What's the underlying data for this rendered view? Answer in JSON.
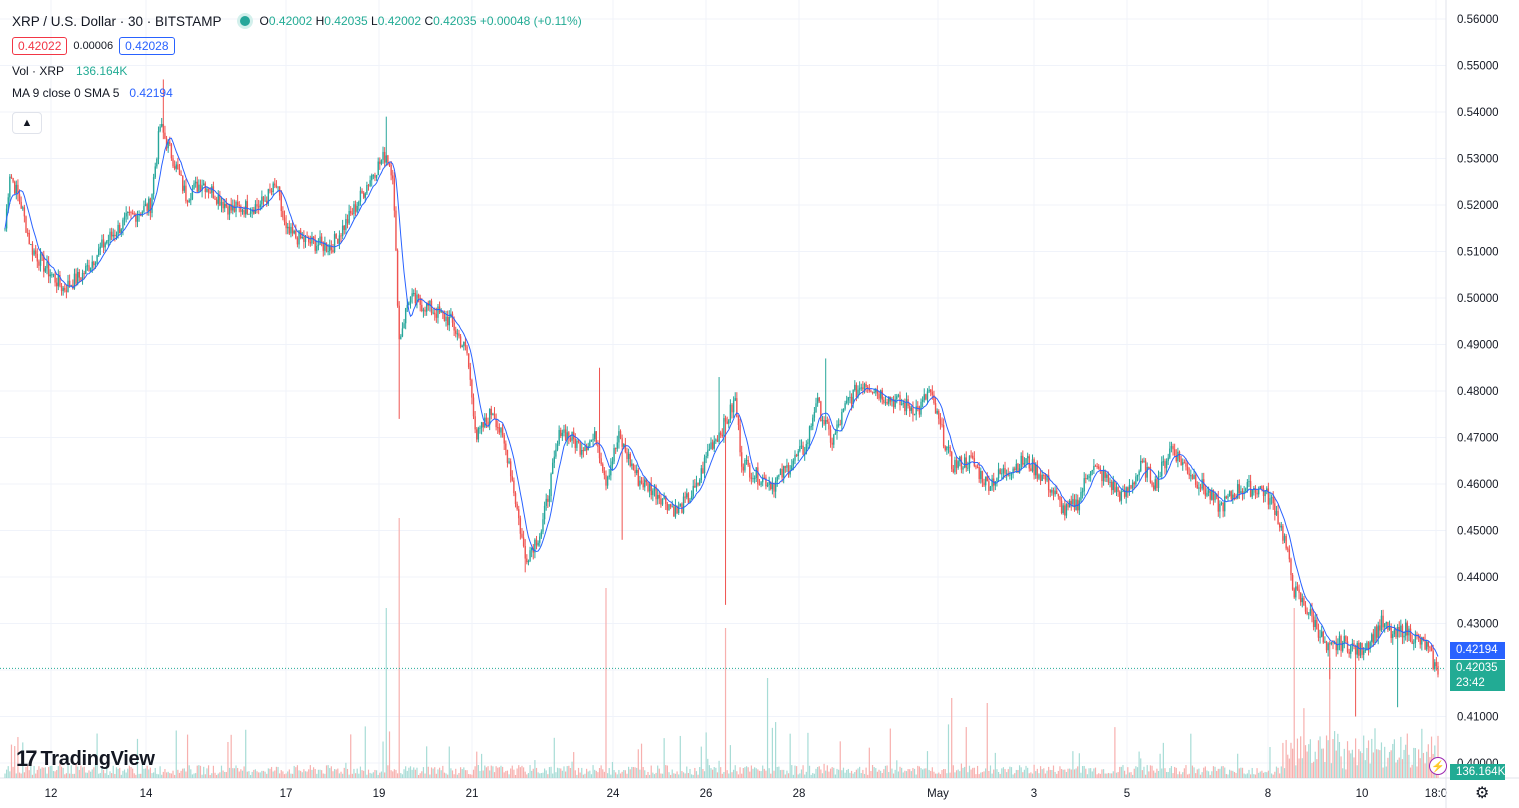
{
  "header": {
    "symbol": "XRP / U.S. Dollar · 30 · BITSTAMP",
    "open_label": "O",
    "open": "0.42002",
    "high_label": "H",
    "high": "0.42035",
    "low_label": "L",
    "low": "0.42002",
    "close_label": "C",
    "close": "0.42035",
    "change": "+0.00048 (+0.11%)"
  },
  "trade": {
    "sell": "0.42022",
    "spread": "0.00006",
    "buy": "0.42028"
  },
  "indicators": {
    "volume_label": "Vol · XRP",
    "volume_value": "136.164K",
    "ma_label": "MA 9 close 0 SMA 5",
    "ma_value": "0.42194"
  },
  "collapse_icon": "chevron-up-icon",
  "logo": {
    "text": "TradingView",
    "icon": "tradingview-logo-icon"
  },
  "price_labels": {
    "ma": "0.42194",
    "last": "0.42035",
    "countdown": "23:42",
    "volume": "136.164K"
  },
  "colors": {
    "up": "#26a69a",
    "down": "#ef5350",
    "ma": "#2962ff",
    "grid": "#f0f3fa"
  },
  "chart_data": {
    "type": "candlestick",
    "ylim": [
      0.395,
      0.565
    ],
    "yticks": [
      "0.56000",
      "0.55000",
      "0.54000",
      "0.53000",
      "0.52000",
      "0.51000",
      "0.50000",
      "0.49000",
      "0.48000",
      "0.47000",
      "0.46000",
      "0.45000",
      "0.44000",
      "0.43000",
      "0.42000",
      "0.41000",
      "0.40000"
    ],
    "xticks": [
      "12",
      "14",
      "17",
      "19",
      "21",
      "24",
      "26",
      "28",
      "May",
      "3",
      "5",
      "8",
      "10",
      "18:0"
    ],
    "anchors": [
      {
        "t": 0,
        "p": 0.515
      },
      {
        "t": 3,
        "p": 0.527
      },
      {
        "t": 10,
        "p": 0.52
      },
      {
        "t": 16,
        "p": 0.511
      },
      {
        "t": 24,
        "p": 0.507
      },
      {
        "t": 36,
        "p": 0.502
      },
      {
        "t": 48,
        "p": 0.505
      },
      {
        "t": 62,
        "p": 0.512
      },
      {
        "t": 76,
        "p": 0.517
      },
      {
        "t": 90,
        "p": 0.52
      },
      {
        "t": 96,
        "p": 0.537
      },
      {
        "t": 104,
        "p": 0.53
      },
      {
        "t": 112,
        "p": 0.522
      },
      {
        "t": 122,
        "p": 0.525
      },
      {
        "t": 140,
        "p": 0.519
      },
      {
        "t": 158,
        "p": 0.52
      },
      {
        "t": 168,
        "p": 0.524
      },
      {
        "t": 174,
        "p": 0.514
      },
      {
        "t": 188,
        "p": 0.512
      },
      {
        "t": 202,
        "p": 0.511
      },
      {
        "t": 216,
        "p": 0.519
      },
      {
        "t": 228,
        "p": 0.527
      },
      {
        "t": 236,
        "p": 0.531
      },
      {
        "t": 240,
        "p": 0.527
      },
      {
        "t": 244,
        "p": 0.491
      },
      {
        "t": 250,
        "p": 0.5
      },
      {
        "t": 262,
        "p": 0.498
      },
      {
        "t": 276,
        "p": 0.495
      },
      {
        "t": 286,
        "p": 0.488
      },
      {
        "t": 292,
        "p": 0.47
      },
      {
        "t": 302,
        "p": 0.476
      },
      {
        "t": 312,
        "p": 0.465
      },
      {
        "t": 322,
        "p": 0.444
      },
      {
        "t": 332,
        "p": 0.45
      },
      {
        "t": 338,
        "p": 0.461
      },
      {
        "t": 344,
        "p": 0.472
      },
      {
        "t": 356,
        "p": 0.468
      },
      {
        "t": 366,
        "p": 0.47
      },
      {
        "t": 372,
        "p": 0.461
      },
      {
        "t": 380,
        "p": 0.47
      },
      {
        "t": 392,
        "p": 0.461
      },
      {
        "t": 404,
        "p": 0.458
      },
      {
        "t": 416,
        "p": 0.454
      },
      {
        "t": 428,
        "p": 0.459
      },
      {
        "t": 436,
        "p": 0.468
      },
      {
        "t": 446,
        "p": 0.473
      },
      {
        "t": 452,
        "p": 0.478
      },
      {
        "t": 456,
        "p": 0.465
      },
      {
        "t": 464,
        "p": 0.462
      },
      {
        "t": 476,
        "p": 0.46
      },
      {
        "t": 488,
        "p": 0.465
      },
      {
        "t": 496,
        "p": 0.468
      },
      {
        "t": 502,
        "p": 0.478
      },
      {
        "t": 512,
        "p": 0.469
      },
      {
        "t": 522,
        "p": 0.478
      },
      {
        "t": 532,
        "p": 0.482
      },
      {
        "t": 544,
        "p": 0.479
      },
      {
        "t": 556,
        "p": 0.477
      },
      {
        "t": 566,
        "p": 0.476
      },
      {
        "t": 572,
        "p": 0.48
      },
      {
        "t": 580,
        "p": 0.471
      },
      {
        "t": 586,
        "p": 0.464
      },
      {
        "t": 598,
        "p": 0.465
      },
      {
        "t": 608,
        "p": 0.46
      },
      {
        "t": 620,
        "p": 0.463
      },
      {
        "t": 632,
        "p": 0.465
      },
      {
        "t": 644,
        "p": 0.461
      },
      {
        "t": 656,
        "p": 0.454
      },
      {
        "t": 664,
        "p": 0.456
      },
      {
        "t": 672,
        "p": 0.464
      },
      {
        "t": 682,
        "p": 0.461
      },
      {
        "t": 692,
        "p": 0.457
      },
      {
        "t": 704,
        "p": 0.464
      },
      {
        "t": 712,
        "p": 0.46
      },
      {
        "t": 722,
        "p": 0.468
      },
      {
        "t": 730,
        "p": 0.464
      },
      {
        "t": 742,
        "p": 0.459
      },
      {
        "t": 752,
        "p": 0.455
      },
      {
        "t": 764,
        "p": 0.459
      },
      {
        "t": 778,
        "p": 0.459
      },
      {
        "t": 786,
        "p": 0.455
      },
      {
        "t": 792,
        "p": 0.448
      },
      {
        "t": 798,
        "p": 0.437
      },
      {
        "t": 806,
        "p": 0.433
      },
      {
        "t": 814,
        "p": 0.428
      },
      {
        "t": 818,
        "p": 0.424
      },
      {
        "t": 828,
        "p": 0.426
      },
      {
        "t": 838,
        "p": 0.424
      },
      {
        "t": 846,
        "p": 0.427
      },
      {
        "t": 852,
        "p": 0.43
      },
      {
        "t": 860,
        "p": 0.427
      },
      {
        "t": 866,
        "p": 0.429
      },
      {
        "t": 872,
        "p": 0.427
      },
      {
        "t": 880,
        "p": 0.425
      },
      {
        "t": 886,
        "p": 0.42
      }
    ],
    "spikes": [
      {
        "t": 98,
        "p": 0.547
      },
      {
        "t": 236,
        "p": 0.539
      },
      {
        "t": 244,
        "p": 0.474
      },
      {
        "t": 322,
        "p": 0.441
      },
      {
        "t": 368,
        "p": 0.485
      },
      {
        "t": 382,
        "p": 0.448
      },
      {
        "t": 442,
        "p": 0.483
      },
      {
        "t": 446,
        "p": 0.434
      },
      {
        "t": 508,
        "p": 0.487
      },
      {
        "t": 820,
        "p": 0.418
      },
      {
        "t": 836,
        "p": 0.41
      },
      {
        "t": 862,
        "p": 0.412
      }
    ],
    "volume_spikes": [
      {
        "t": 236,
        "v": 170
      },
      {
        "t": 244,
        "v": 260
      },
      {
        "t": 372,
        "v": 190
      },
      {
        "t": 446,
        "v": 150
      },
      {
        "t": 472,
        "v": 100
      },
      {
        "t": 586,
        "v": 80
      },
      {
        "t": 608,
        "v": 75
      },
      {
        "t": 798,
        "v": 170
      },
      {
        "t": 820,
        "v": 120
      }
    ],
    "bars_total": 888
  }
}
